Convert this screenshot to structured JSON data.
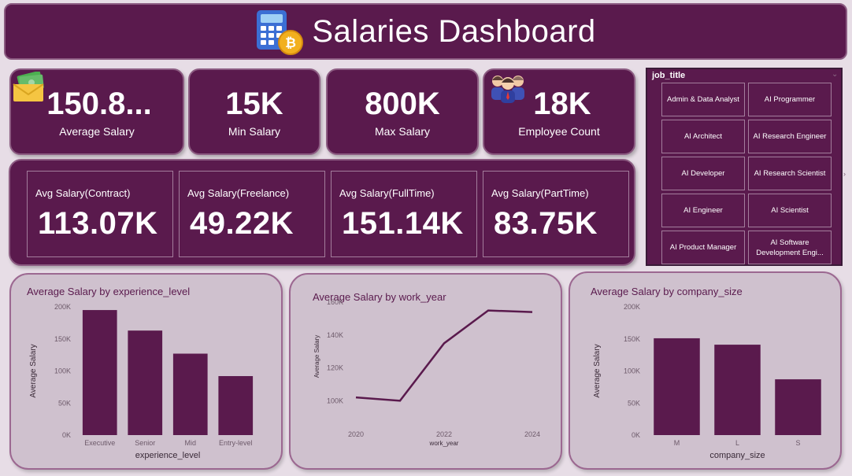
{
  "header": {
    "title": "Salaries Dashboard",
    "icon": "calculator-bitcoin-icon"
  },
  "kpis": [
    {
      "value": "150.8...",
      "label": "Average Salary",
      "icon": "money-envelope-icon"
    },
    {
      "value": "15K",
      "label": "Min Salary"
    },
    {
      "value": "800K",
      "label": "Max Salary"
    },
    {
      "value": "18K",
      "label": "Employee Count",
      "icon": "employees-icon"
    }
  ],
  "contract_types": [
    {
      "label": "Avg Salary(Contract)",
      "value": "113.07K"
    },
    {
      "label": "Avg Salary(Freelance)",
      "value": "49.22K"
    },
    {
      "label": "Avg Salary(FullTime)",
      "value": "151.14K"
    },
    {
      "label": "Avg Salary(PartTime)",
      "value": "83.75K"
    }
  ],
  "slicer": {
    "title": "job_title",
    "items": [
      "Admin & Data Analyst",
      "AI Programmer",
      "AI Architect",
      "AI Research Engineer",
      "AI Developer",
      "AI Research Scientist",
      "AI Engineer",
      "AI Scientist",
      "AI Product Manager",
      "AI Software Development Engi..."
    ]
  },
  "colors": {
    "primary": "#5a1a4d",
    "card_bg": "#cfc1ce",
    "page_bg": "#e7dde6"
  },
  "chart_data": [
    {
      "type": "bar",
      "title": "Average Salary by experience_level",
      "xlabel": "experience_level",
      "ylabel": "Average Salary",
      "categories": [
        "Executive",
        "Senior",
        "Mid",
        "Entry-level"
      ],
      "values": [
        195000,
        163000,
        127000,
        92000
      ],
      "ylim": [
        0,
        200000
      ],
      "yticks": [
        "0K",
        "50K",
        "100K",
        "150K",
        "200K"
      ],
      "ytick_values": [
        0,
        50000,
        100000,
        150000,
        200000
      ]
    },
    {
      "type": "line",
      "title": "Average Salary by work_year",
      "xlabel": "work_year",
      "ylabel": "Average Salary",
      "x": [
        2020,
        2021,
        2022,
        2023,
        2024
      ],
      "values": [
        102000,
        100000,
        135000,
        155000,
        154000
      ],
      "ylim": [
        92000,
        162000
      ],
      "xticks": [
        "2020",
        "2022",
        "2024"
      ],
      "xtick_values": [
        2020,
        2022,
        2024
      ],
      "yticks": [
        "100K",
        "120K",
        "140K",
        "160K"
      ],
      "ytick_values": [
        100000,
        120000,
        140000,
        160000
      ]
    },
    {
      "type": "bar",
      "title": "Average Salary by company_size",
      "xlabel": "company_size",
      "ylabel": "Average Salary",
      "categories": [
        "M",
        "L",
        "S"
      ],
      "values": [
        151000,
        141000,
        87000
      ],
      "ylim": [
        0,
        200000
      ],
      "yticks": [
        "0K",
        "50K",
        "100K",
        "150K",
        "200K"
      ],
      "ytick_values": [
        0,
        50000,
        100000,
        150000,
        200000
      ]
    }
  ]
}
